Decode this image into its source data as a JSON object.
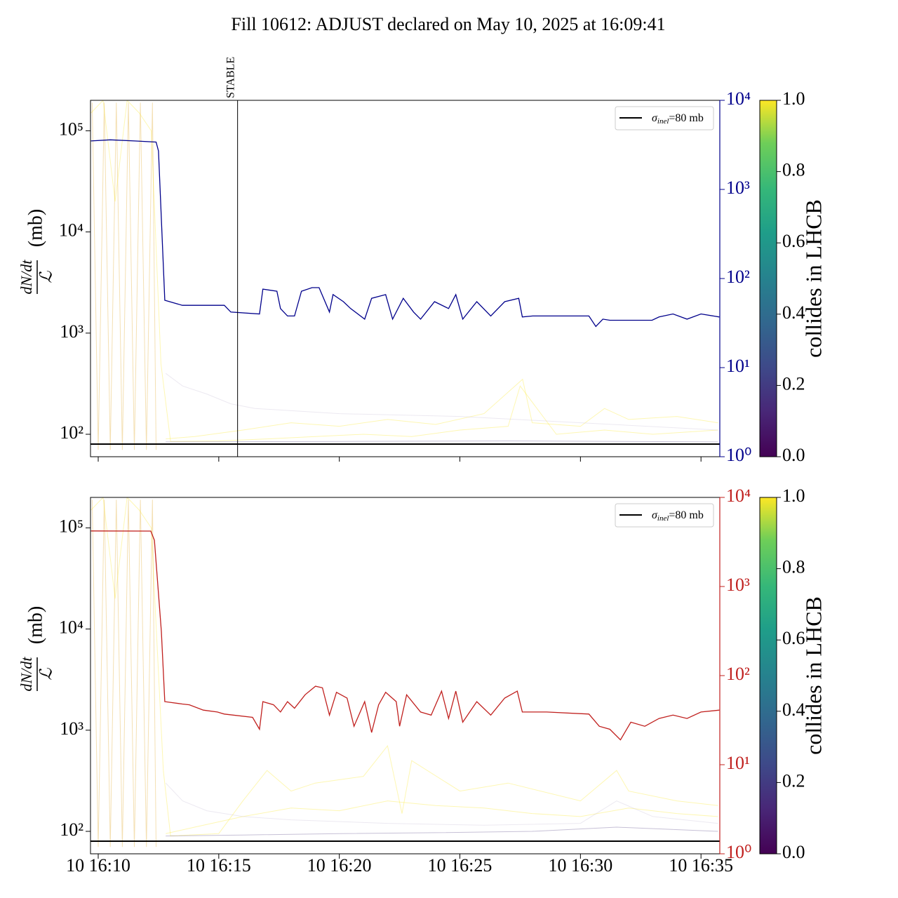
{
  "title": "Fill 10612: ADJUST declared on May 10, 2025 at 16:09:41",
  "chart_data": [
    {
      "type": "line",
      "ylabel": {
        "numerator": "dN/dt",
        "denominator": "ℒ",
        "unit": "(mb)"
      },
      "log_y": true,
      "log_y2": true,
      "xlim": [
        9.68,
        35.78
      ],
      "xticks": [
        10,
        15,
        20,
        25,
        30,
        35
      ],
      "xtick_labels_visible": false,
      "ylim": [
        60,
        200000
      ],
      "yticks": [
        {
          "value": 100,
          "label": "10²"
        },
        {
          "value": 1000,
          "label": "10³"
        },
        {
          "value": 10000,
          "label": "10⁴"
        },
        {
          "value": 100000,
          "label": "10⁵"
        }
      ],
      "y2lim": [
        1,
        10000
      ],
      "y2ticks": [
        {
          "value": 1,
          "label": "10⁰"
        },
        {
          "value": 10,
          "label": "10¹"
        },
        {
          "value": 100,
          "label": "10²"
        },
        {
          "value": 1000,
          "label": "10³"
        },
        {
          "value": 10000,
          "label": "10⁴"
        }
      ],
      "series": [
        {
          "color": "#00008b",
          "axis": "y2",
          "x": [
            9.7,
            10.5,
            11.5,
            12.4,
            12.5,
            12.76,
            13.49,
            15.23,
            15.5,
            16.69,
            16.83,
            17.41,
            17.56,
            17.85,
            18.14,
            18.43,
            18.87,
            19.16,
            19.59,
            19.74,
            20.17,
            20.47,
            21.05,
            21.34,
            21.92,
            22.21,
            22.65,
            23.08,
            23.37,
            23.95,
            24.53,
            24.83,
            25.12,
            25.7,
            26.28,
            26.86,
            27.44,
            27.59,
            28.02,
            30.35,
            30.64,
            30.93,
            31.22,
            32.97,
            33.26,
            33.84,
            34.42,
            35.0,
            35.76
          ],
          "values": [
            3500,
            3600,
            3500,
            3400,
            2700,
            57,
            50,
            50,
            42,
            40,
            76,
            72,
            46,
            38,
            38,
            72,
            79,
            79,
            42,
            66,
            55,
            46,
            35,
            60,
            66,
            35,
            60,
            42,
            35,
            55,
            46,
            66,
            35,
            55,
            38,
            55,
            60,
            37,
            38,
            38,
            29,
            35,
            34,
            34,
            37,
            40,
            35,
            40,
            37
          ]
        }
      ],
      "faint_series": [
        {
          "color": "#e0a526",
          "x": [
            9.75,
            10.0,
            10.25,
            10.5,
            10.75,
            11.0,
            11.25,
            11.5,
            11.75,
            12.0,
            12.25,
            12.4
          ],
          "values": [
            190000,
            70,
            190000,
            70,
            190000,
            70,
            190000,
            70,
            190000,
            70,
            190000,
            70
          ]
        },
        {
          "color": "#fde725",
          "x": [
            9.7,
            10.2,
            10.7,
            11.2,
            11.7,
            12.2,
            12.6,
            13.0,
            15.0,
            17.0,
            19.0,
            21.0,
            23.0,
            25.0,
            27.0,
            27.5,
            29.0,
            31.0,
            33.0,
            35.7
          ],
          "values": [
            150000,
            200000,
            20000,
            200000,
            150000,
            100000,
            500,
            85,
            86,
            90,
            95,
            100,
            95,
            110,
            120,
            300,
            100,
            110,
            100,
            110
          ]
        },
        {
          "color": "#fde725",
          "x": [
            12.8,
            14.0,
            16.0,
            18.0,
            20.0,
            22.0,
            24.0,
            26.0,
            27.6,
            28.0,
            30.0,
            31.0,
            32.0,
            34.0,
            35.7
          ],
          "values": [
            90,
            95,
            110,
            130,
            120,
            140,
            125,
            160,
            350,
            130,
            120,
            180,
            140,
            150,
            130
          ]
        },
        {
          "color": "#c8c0d8",
          "x": [
            12.8,
            13.5,
            14.5,
            15.5,
            16.5,
            20.0,
            25.0,
            30.0,
            35.7
          ],
          "values": [
            400,
            300,
            250,
            200,
            180,
            160,
            150,
            130,
            110
          ]
        },
        {
          "color": "#5b4a8a",
          "x": [
            12.8,
            20.0,
            27.0,
            35.7
          ],
          "values": [
            84,
            85,
            86,
            84
          ]
        }
      ],
      "hline": {
        "value": 80,
        "color": "#000000"
      },
      "vline": {
        "x": 15.78,
        "label": "STABLE",
        "color": "#000000"
      },
      "legend": {
        "symbol": "σ",
        "subscript": "inel",
        "text": "=80 mb",
        "corner": "upper right"
      },
      "colorbar": {
        "label": "collides in LHCB",
        "lim": [
          0,
          1
        ],
        "ticks": [
          {
            "value": 0,
            "label": "0.0"
          },
          {
            "value": 0.2,
            "label": "0.2"
          },
          {
            "value": 0.4,
            "label": "0.4"
          },
          {
            "value": 0.6,
            "label": "0.6"
          },
          {
            "value": 0.8,
            "label": "0.8"
          },
          {
            "value": 1,
            "label": "1.0"
          }
        ]
      }
    },
    {
      "type": "line",
      "ylabel": {
        "numerator": "dN/dt",
        "denominator": "ℒ",
        "unit": "(mb)"
      },
      "log_y": true,
      "log_y2": true,
      "xlim": [
        9.68,
        35.78
      ],
      "xticks": [
        {
          "value": 10,
          "label": "10 16:10"
        },
        {
          "value": 15,
          "label": "10 16:15"
        },
        {
          "value": 20,
          "label": "10 16:20"
        },
        {
          "value": 25,
          "label": "10 16:25"
        },
        {
          "value": 30,
          "label": "10 16:30"
        },
        {
          "value": 35,
          "label": "10 16:35"
        }
      ],
      "xtick_labels_visible": true,
      "ylim": [
        60,
        200000
      ],
      "yticks": [
        {
          "value": 100,
          "label": "10²"
        },
        {
          "value": 1000,
          "label": "10³"
        },
        {
          "value": 10000,
          "label": "10⁴"
        },
        {
          "value": 100000,
          "label": "10⁵"
        }
      ],
      "y2lim": [
        1,
        10000
      ],
      "y2ticks": [
        {
          "value": 1,
          "label": "10⁰"
        },
        {
          "value": 10,
          "label": "10¹"
        },
        {
          "value": 100,
          "label": "10²"
        },
        {
          "value": 1000,
          "label": "10³"
        },
        {
          "value": 10000,
          "label": "10⁴"
        }
      ],
      "series": [
        {
          "color": "#c0201e",
          "axis": "y2",
          "x": [
            9.7,
            12.18,
            12.33,
            12.62,
            12.76,
            13.49,
            13.78,
            14.36,
            14.94,
            15.23,
            16.4,
            16.69,
            16.83,
            17.27,
            17.56,
            17.85,
            18.14,
            18.58,
            19.01,
            19.3,
            19.59,
            19.88,
            20.32,
            20.61,
            21.05,
            21.34,
            21.63,
            21.92,
            22.36,
            22.5,
            22.79,
            23.37,
            23.81,
            24.24,
            24.53,
            24.83,
            25.12,
            25.7,
            26.28,
            26.86,
            27.38,
            27.59,
            28.6,
            30.35,
            30.78,
            31.22,
            31.66,
            32.09,
            32.67,
            33.26,
            33.84,
            34.42,
            35.0,
            35.76
          ],
          "values": [
            4200,
            4190,
            3310,
            313,
            51,
            48,
            47,
            41,
            39,
            37,
            34,
            25,
            51,
            47,
            39,
            51,
            43,
            61,
            76,
            73,
            36,
            65,
            56,
            27,
            51,
            23,
            47,
            65,
            51,
            27,
            61,
            39,
            36,
            67,
            33,
            67,
            30,
            51,
            36,
            56,
            67,
            39,
            39,
            37,
            27,
            25,
            19,
            30,
            27,
            33,
            36,
            33,
            39,
            41
          ]
        }
      ],
      "faint_series": [
        {
          "color": "#e0a526",
          "x": [
            9.75,
            10.0,
            10.25,
            10.5,
            10.75,
            11.0,
            11.25,
            11.5,
            11.75,
            12.0,
            12.25,
            12.4
          ],
          "values": [
            190000,
            70,
            190000,
            70,
            190000,
            70,
            190000,
            70,
            190000,
            70,
            190000,
            70
          ]
        },
        {
          "color": "#fde725",
          "x": [
            9.7,
            10.2,
            10.7,
            11.2,
            11.7,
            12.2,
            12.7,
            13.0,
            15.0,
            16.0,
            17.0,
            18.0,
            19.0,
            21.0,
            22.0,
            22.6,
            23.0,
            25.0,
            27.0,
            30.0,
            31.5,
            32.0,
            34.0,
            35.7
          ],
          "values": [
            150000,
            200000,
            20000,
            200000,
            150000,
            100000,
            400,
            90,
            95,
            200,
            400,
            250,
            300,
            350,
            700,
            150,
            500,
            250,
            300,
            200,
            400,
            250,
            200,
            180
          ]
        },
        {
          "color": "#fde725",
          "x": [
            12.8,
            14.0,
            16.0,
            18.0,
            20.0,
            22.0,
            24.0,
            26.0,
            28.0,
            30.0,
            32.0,
            34.0,
            35.7
          ],
          "values": [
            95,
            110,
            140,
            170,
            160,
            200,
            180,
            170,
            150,
            140,
            170,
            150,
            140
          ]
        },
        {
          "color": "#c8c0d8",
          "x": [
            12.8,
            13.5,
            14.5,
            16.0,
            18.0,
            22.0,
            26.0,
            30.0,
            31.5,
            33.0,
            35.7
          ],
          "values": [
            300,
            200,
            160,
            140,
            130,
            120,
            115,
            120,
            200,
            140,
            120
          ]
        },
        {
          "color": "#5b4a8a",
          "x": [
            12.8,
            16.0,
            20.0,
            24.0,
            28.0,
            31.5,
            35.7
          ],
          "values": [
            90,
            92,
            95,
            97,
            100,
            110,
            100
          ]
        }
      ],
      "hline": {
        "value": 80,
        "color": "#000000"
      },
      "legend": {
        "symbol": "σ",
        "subscript": "inel",
        "text": "=80 mb",
        "corner": "upper right"
      },
      "colorbar": {
        "label": "collides in LHCB",
        "lim": [
          0,
          1
        ],
        "ticks": [
          {
            "value": 0,
            "label": "0.0"
          },
          {
            "value": 0.2,
            "label": "0.2"
          },
          {
            "value": 0.4,
            "label": "0.4"
          },
          {
            "value": 0.6,
            "label": "0.6"
          },
          {
            "value": 0.8,
            "label": "0.8"
          },
          {
            "value": 1,
            "label": "1.0"
          }
        ]
      }
    }
  ]
}
